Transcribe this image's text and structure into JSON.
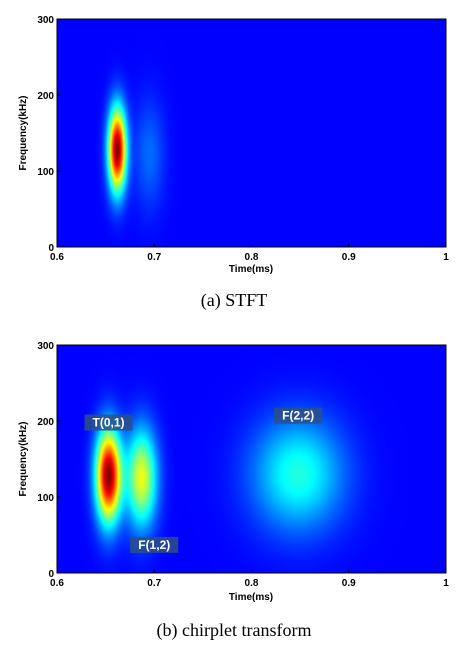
{
  "colors": {
    "background": "#00008f",
    "blob_palette": "jet"
  },
  "chart_data": [
    {
      "type": "heatmap",
      "caption": "(a)  STFT",
      "title": "",
      "xlabel": "Time(ms)",
      "ylabel": "Frequency(kHz)",
      "xlim": [
        0.6,
        1
      ],
      "ylim": [
        0,
        300
      ],
      "xticks": [
        "0.6",
        "0.7",
        "0.8",
        "0.9",
        "1"
      ],
      "yticks": [
        "0",
        "100",
        "200",
        "300"
      ],
      "grid": false,
      "components": [
        {
          "t": 0.662,
          "f": 128,
          "sigma_t": 0.0065,
          "sigma_f": 38,
          "amplitude": 1.0,
          "label": ""
        },
        {
          "t": 0.695,
          "f": 122,
          "sigma_t": 0.011,
          "sigma_f": 50,
          "amplitude": 0.12,
          "label": ""
        }
      ]
    },
    {
      "type": "heatmap",
      "caption": "(b)  chirplet  transform",
      "title": "",
      "xlabel": "Time(ms)",
      "ylabel": "Frequency(kHz)",
      "xlim": [
        0.6,
        1
      ],
      "ylim": [
        0,
        300
      ],
      "xticks": [
        "0.6",
        "0.7",
        "0.8",
        "0.9",
        "1"
      ],
      "yticks": [
        "0",
        "100",
        "200",
        "300"
      ],
      "grid": false,
      "components": [
        {
          "t": 0.653,
          "f": 128,
          "sigma_t": 0.009,
          "sigma_f": 42,
          "amplitude": 1.0,
          "label": "T(0,1)"
        },
        {
          "t": 0.687,
          "f": 125,
          "sigma_t": 0.011,
          "sigma_f": 45,
          "amplitude": 0.55,
          "label": "F(1,2)"
        },
        {
          "t": 0.848,
          "f": 130,
          "sigma_t": 0.033,
          "sigma_f": 52,
          "amplitude": 0.32,
          "label": "F(2,2)"
        }
      ]
    }
  ]
}
